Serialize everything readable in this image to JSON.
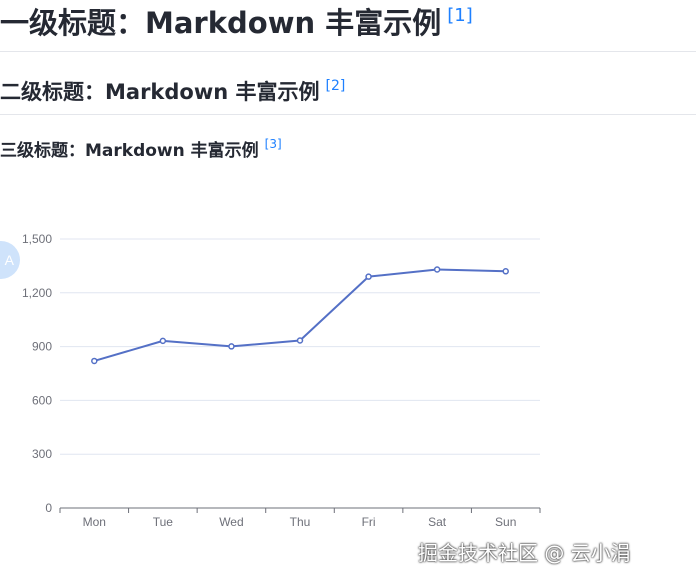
{
  "headings": {
    "h1": {
      "text": "一级标题：Markdown 丰富示例",
      "ref": "[1]"
    },
    "h2": {
      "text": "二级标题：Markdown 丰富示例",
      "ref": "[2]"
    },
    "h3": {
      "text": "三级标题：Markdown 丰富示例",
      "ref": "[3]"
    }
  },
  "float_badge": {
    "label": "A",
    "icon": "translate-icon"
  },
  "watermark": "掘金技术社区 @ 云小涓",
  "colors": {
    "line": "#5470c6",
    "link": "#1e80ff",
    "axis": "#6e7079",
    "grid": "#e0e6f1"
  },
  "chart_data": {
    "type": "line",
    "categories": [
      "Mon",
      "Tue",
      "Wed",
      "Thu",
      "Fri",
      "Sat",
      "Sun"
    ],
    "series": [
      {
        "values": [
          820,
          932,
          901,
          934,
          1290,
          1330,
          1320
        ]
      }
    ],
    "ylim": [
      0,
      1500
    ],
    "yticks": [
      0,
      300,
      600,
      900,
      1200,
      1500
    ],
    "ytick_labels": [
      "0",
      "300",
      "600",
      "900",
      "1,200",
      "1,500"
    ],
    "grid": true
  }
}
